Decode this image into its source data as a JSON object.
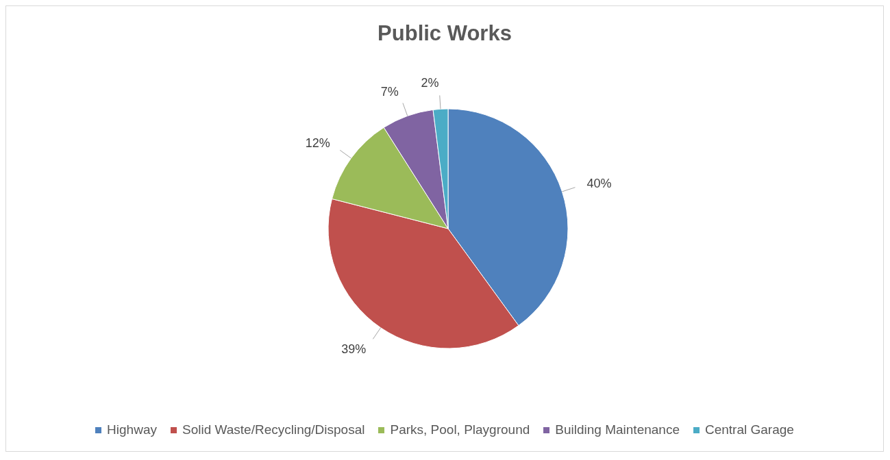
{
  "chart_data": {
    "type": "pie",
    "title": "Public Works",
    "categories": [
      "Highway",
      "Solid Waste/Recycling/Disposal",
      "Parks, Pool, Playground",
      "Building Maintenance",
      "Central Garage"
    ],
    "values": [
      40,
      39,
      12,
      7,
      2
    ],
    "value_labels": [
      "40%",
      "39%",
      "12%",
      "7%",
      "2%"
    ],
    "colors": [
      "#4f81bd",
      "#c0504d",
      "#9bbb59",
      "#8064a2",
      "#4bacc6"
    ],
    "legend": "bottom"
  }
}
